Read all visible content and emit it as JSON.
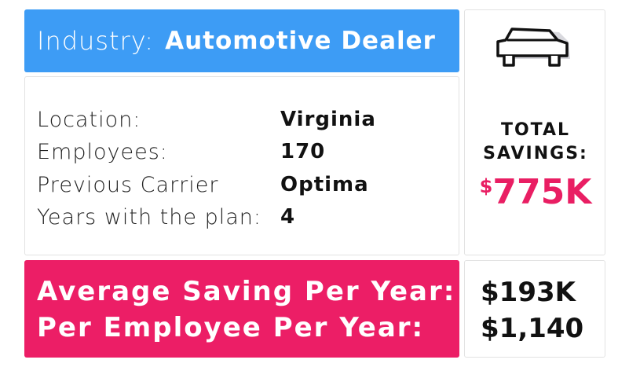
{
  "industry": {
    "label": "Industry:",
    "value": "Automotive Dealer"
  },
  "details": [
    {
      "label": "Location:",
      "value": "Virginia"
    },
    {
      "label": "Employees:",
      "value": "170"
    },
    {
      "label": "Previous Carrier",
      "value": "Optima"
    },
    {
      "label": "Years with the plan:",
      "value": "4"
    }
  ],
  "savings": {
    "icon": "car-icon",
    "title_line1": "TOTAL",
    "title_line2": "SAVINGS:",
    "currency": "$",
    "amount": "775K"
  },
  "averages": [
    {
      "label": "Average Saving Per Year:",
      "value": "$193K"
    },
    {
      "label": "Per Employee Per Year:",
      "value": "$1,140"
    }
  ],
  "colors": {
    "blue": "#3d9cf5",
    "pink": "#ec1e66",
    "accent_text": "#e91e63"
  }
}
